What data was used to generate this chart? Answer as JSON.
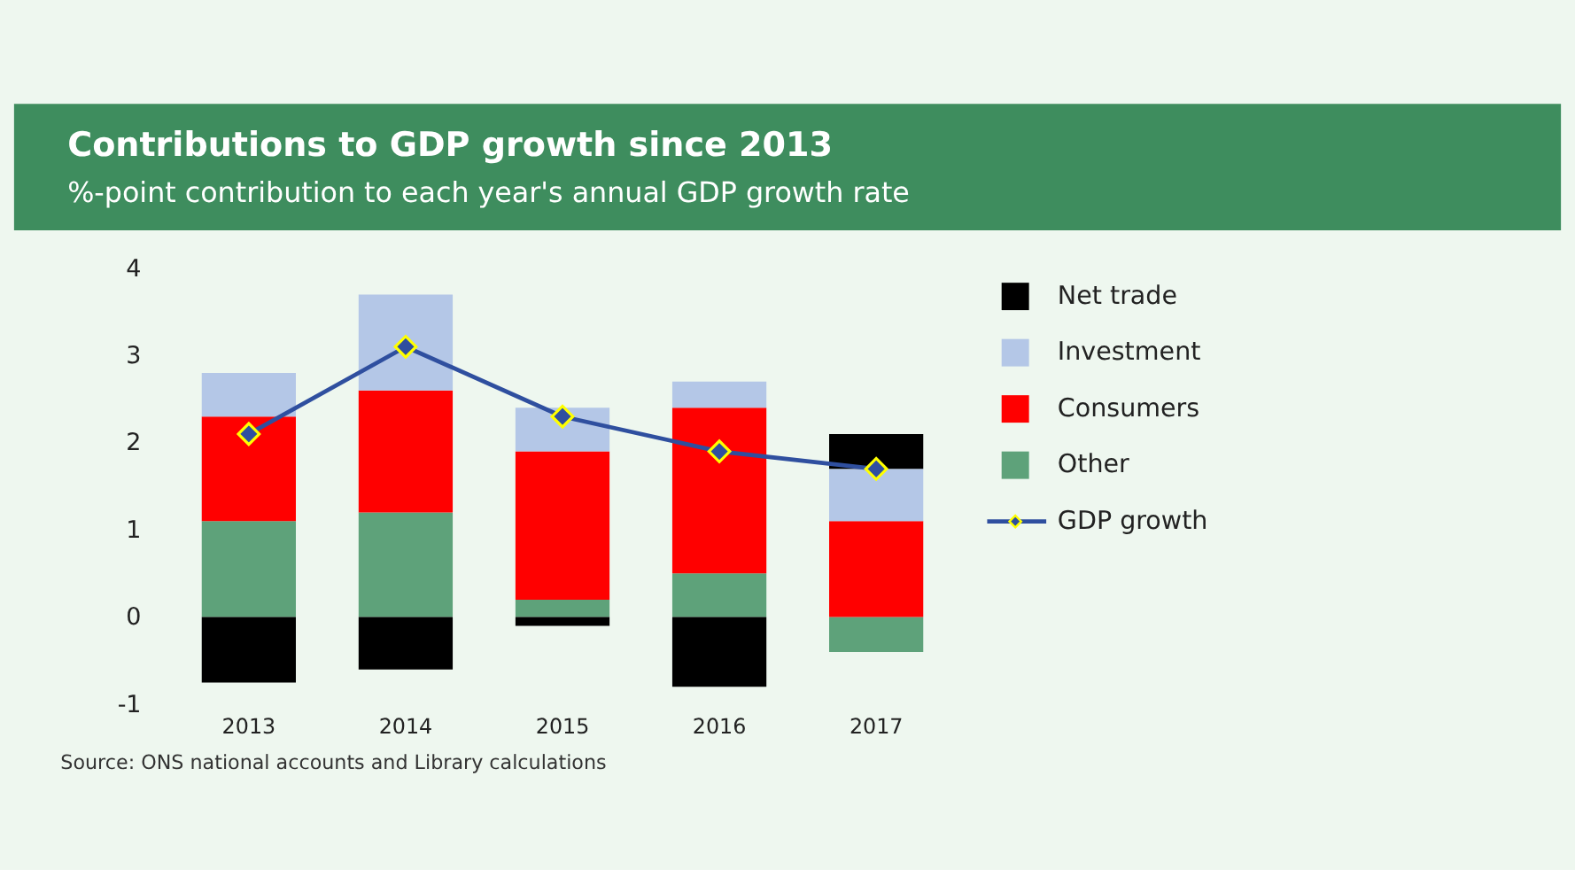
{
  "chart_data": {
    "type": "bar",
    "title": "Contributions to GDP growth since 2013",
    "subtitle": "%-point contribution to each year's annual GDP growth rate",
    "categories": [
      "2013",
      "2014",
      "2015",
      "2016",
      "2017"
    ],
    "stacked": true,
    "series": [
      {
        "name": "Other",
        "color": "#5ea27a",
        "values": [
          1.1,
          1.2,
          0.2,
          0.5,
          -0.4
        ]
      },
      {
        "name": "Consumers",
        "color": "#ff0000",
        "values": [
          1.2,
          1.4,
          1.7,
          1.9,
          1.1
        ]
      },
      {
        "name": "Investment",
        "color": "#b4c7e7",
        "values": [
          0.5,
          1.1,
          0.5,
          0.3,
          0.6
        ]
      },
      {
        "name": "Net trade",
        "color": "#000000",
        "values": [
          -0.75,
          -0.6,
          -0.1,
          -0.8,
          0.4
        ]
      },
      {
        "name": "GDP growth",
        "type": "line",
        "marker": "diamond",
        "color": "#2f4f9f",
        "values": [
          2.1,
          3.1,
          2.3,
          1.9,
          1.7
        ]
      }
    ],
    "ylim": [
      -1,
      4
    ],
    "yticks": [
      -1,
      0,
      1,
      2,
      3,
      4
    ],
    "legend": "right",
    "annotations": [
      "Source: ONS national accounts and Library calculations"
    ]
  }
}
